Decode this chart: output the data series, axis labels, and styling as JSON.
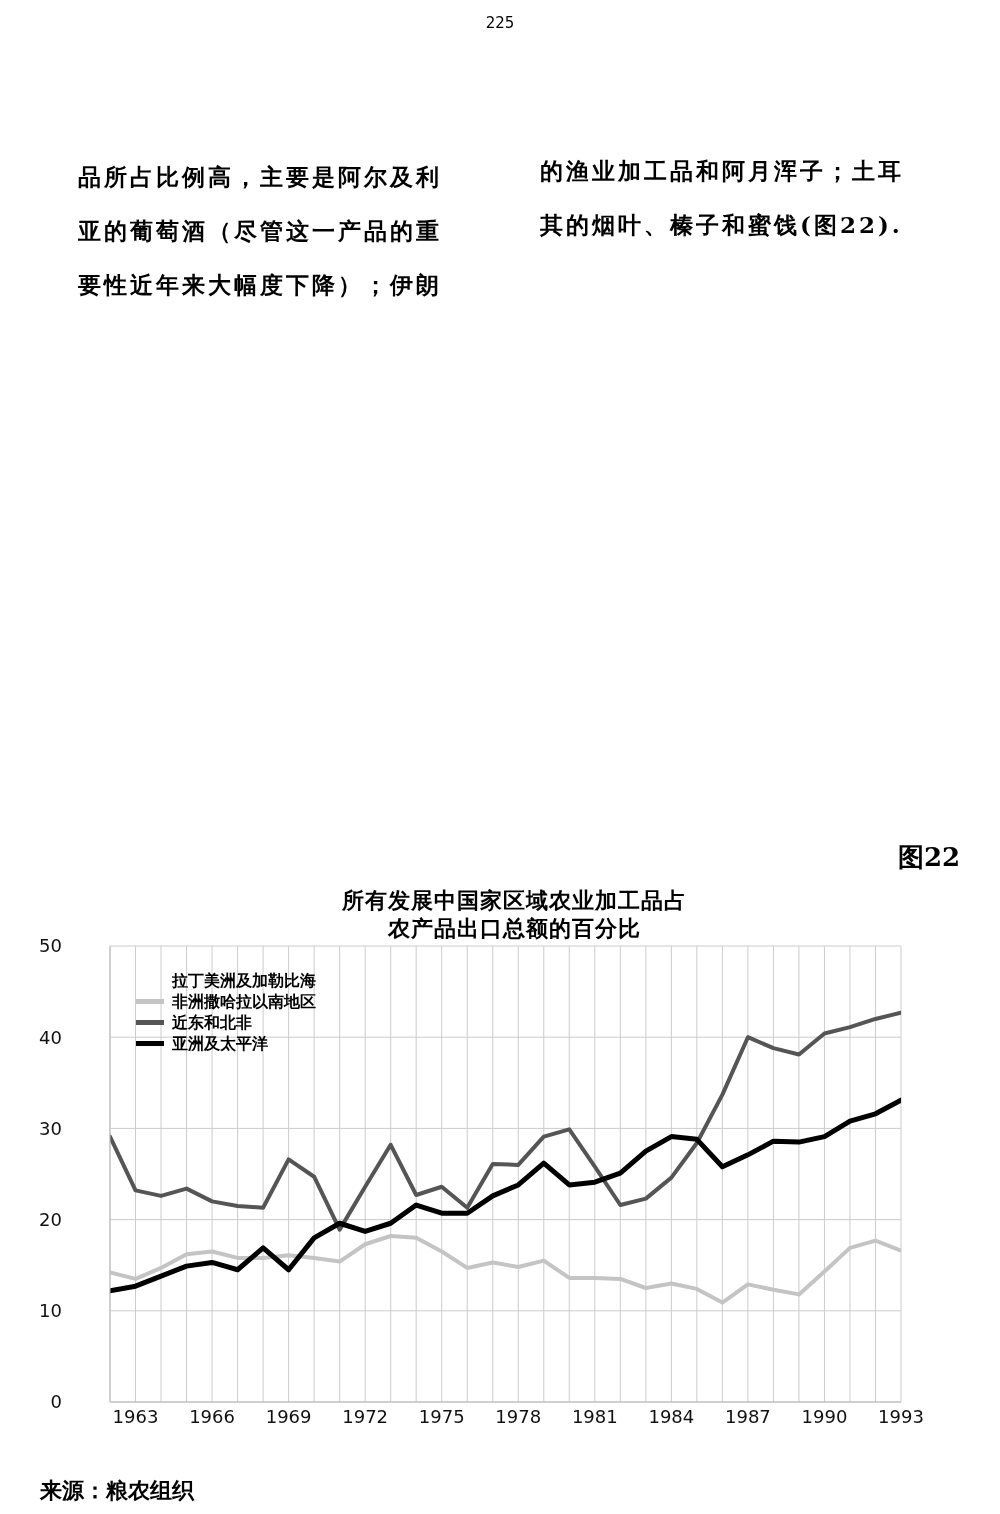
{
  "chart_data": {
    "type": "line",
    "title": "所有发展中国家区域农业加工品占农产品出口总额的百分比",
    "annotations": [
      "225",
      "品所占比例高，主要是阿尔及利亚的葡萄酒（尽管这一产品的重要性近年来大幅度下降）；伊朗",
      "的渔业加工品和阿月浑子；土耳其的烟叶、榛子和蜜饯(图22).",
      "图22",
      "来源：粮农组织"
    ],
    "x": [
      1962,
      1963,
      1964,
      1965,
      1966,
      1967,
      1968,
      1969,
      1970,
      1971,
      1972,
      1973,
      1974,
      1975,
      1976,
      1977,
      1978,
      1979,
      1980,
      1981,
      1982,
      1983,
      1984,
      1985,
      1986,
      1987,
      1988,
      1989,
      1990,
      1991,
      1992,
      1993
    ],
    "series": [
      {
        "name": "拉丁美洲及加勒比海",
        "values": [
          null,
          null,
          null,
          null,
          null,
          null,
          null,
          null,
          null,
          null,
          null,
          null,
          null,
          null,
          null,
          null,
          null,
          null,
          null,
          null,
          null,
          null,
          null,
          null,
          null,
          null,
          null,
          null,
          null,
          null,
          null,
          null
        ]
      },
      {
        "name": "非洲撒哈拉以南地区",
        "color": "#c4c4c4",
        "values": [
          14.2,
          13.5,
          14.7,
          16.2,
          16.5,
          15.8,
          15.8,
          16.1,
          15.8,
          15.4,
          17.3,
          18.2,
          18.0,
          16.5,
          14.7,
          15.3,
          14.8,
          15.5,
          13.6,
          13.6,
          13.5,
          12.5,
          13.0,
          12.4,
          10.9,
          12.9,
          12.3,
          11.8,
          14.3,
          16.9,
          17.7,
          16.6
        ]
      },
      {
        "name": "近东和北非",
        "color": "#555555",
        "values": [
          29.1,
          23.2,
          22.6,
          23.4,
          22.0,
          21.5,
          21.3,
          26.6,
          24.7,
          18.9,
          23.6,
          28.2,
          22.7,
          23.6,
          21.3,
          26.1,
          26.0,
          29.1,
          29.9,
          25.8,
          21.6,
          22.3,
          24.6,
          28.4,
          33.7,
          40.0,
          38.8,
          38.1,
          40.4,
          41.1,
          42.0,
          42.7
        ]
      },
      {
        "name": "亚洲及太平洋",
        "color": "#000000",
        "values": [
          12.2,
          12.7,
          13.8,
          14.9,
          15.3,
          14.5,
          16.9,
          14.5,
          18.0,
          19.6,
          18.7,
          19.6,
          21.6,
          20.7,
          20.7,
          22.6,
          23.8,
          26.2,
          23.8,
          24.1,
          25.1,
          27.5,
          29.1,
          28.8,
          25.8,
          27.1,
          28.6,
          28.5,
          29.1,
          30.8,
          31.6,
          33.1
        ]
      }
    ],
    "xlim": [
      1962,
      1993
    ],
    "xticks": [
      {
        "value": 1962,
        "label": null
      },
      1963,
      {
        "value": 1964,
        "label": null
      },
      {
        "value": 1965,
        "label": null
      },
      1966,
      {
        "value": 1967,
        "label": null
      },
      {
        "value": 1968,
        "label": null
      },
      1969,
      {
        "value": 1970,
        "label": null
      },
      {
        "value": 1971,
        "label": null
      },
      1972,
      {
        "value": 1973,
        "label": null
      },
      {
        "value": 1974,
        "label": null
      },
      1975,
      {
        "value": 1976,
        "label": null
      },
      {
        "value": 1977,
        "label": null
      },
      1978,
      {
        "value": 1979,
        "label": null
      },
      {
        "value": 1980,
        "label": null
      },
      1981,
      {
        "value": 1982,
        "label": null
      },
      {
        "value": 1983,
        "label": null
      },
      1984,
      {
        "value": 1985,
        "label": null
      },
      {
        "value": 1986,
        "label": null
      },
      1987,
      {
        "value": 1988,
        "label": null
      },
      {
        "value": 1989,
        "label": null
      },
      1990,
      {
        "value": 1991,
        "label": null
      },
      {
        "value": 1992,
        "label": null
      },
      1993
    ],
    "ylim": [
      0,
      50
    ],
    "yticks": [
      0,
      10,
      20,
      30,
      40,
      50
    ],
    "grid": true,
    "legend": "top left",
    "marker": "none",
    "line_style": "solid"
  }
}
